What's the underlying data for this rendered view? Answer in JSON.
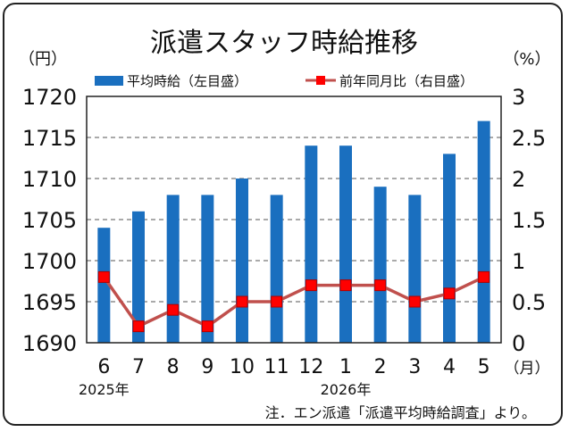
{
  "chart_data": {
    "type": "bar",
    "title": "派遣スタッフ時給推移",
    "left_unit": "（円）",
    "right_unit": "（%）",
    "x_unit": "（月）",
    "categories": [
      "6",
      "7",
      "8",
      "9",
      "10",
      "11",
      "12",
      "1",
      "2",
      "3",
      "4",
      "5"
    ],
    "year_labels": [
      {
        "label": "2025年",
        "at_category": 0
      },
      {
        "label": "2026年",
        "at_category": 7
      }
    ],
    "series": [
      {
        "name": "平均時給（左目盛）",
        "type": "bar",
        "axis": "left",
        "color": "#1a6fbf",
        "values": [
          1704,
          1706,
          1708,
          1708,
          1710,
          1708,
          1714,
          1714,
          1709,
          1708,
          1713,
          1717
        ]
      },
      {
        "name": "前年同月比（右目盛）",
        "type": "line",
        "axis": "right",
        "color": "#c0504d",
        "marker_color": "#ff0000",
        "values": [
          0.8,
          0.2,
          0.4,
          0.2,
          0.5,
          0.5,
          0.7,
          0.7,
          0.7,
          0.5,
          0.6,
          0.8
        ]
      }
    ],
    "y_left": {
      "min": 1690,
      "max": 1720,
      "step": 5,
      "ticks": [
        "1690",
        "1695",
        "1700",
        "1705",
        "1710",
        "1715",
        "1720"
      ]
    },
    "y_right": {
      "min": 0,
      "max": 3,
      "step": 0.5,
      "ticks": [
        "0",
        "0.5",
        "1",
        "1.5",
        "2",
        "2.5",
        "3"
      ]
    },
    "grid": "dashed-horizontal",
    "legend_position": "top",
    "note": "注．エン派遣「派遣平均時給調査」より。"
  }
}
